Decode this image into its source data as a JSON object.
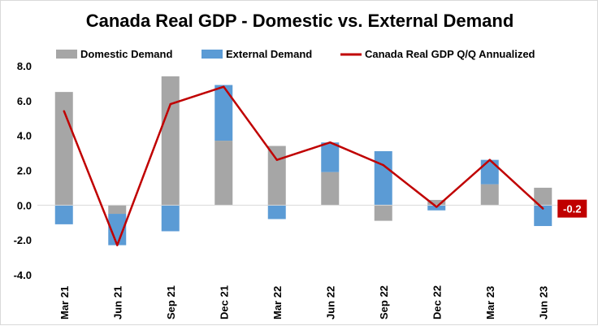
{
  "chart_data": {
    "type": "bar",
    "title": "Canada Real GDP - Domestic vs. External Demand",
    "categories": [
      "Mar 21",
      "Jun 21",
      "Sep 21",
      "Dec 21",
      "Mar 22",
      "Jun 22",
      "Sep 22",
      "Dec 22",
      "Mar 23",
      "Jun 23"
    ],
    "ylim": [
      -4.0,
      8.0
    ],
    "yticks": [
      "8.0",
      "6.0",
      "4.0",
      "2.0",
      "0.0",
      "-2.0",
      "-4.0"
    ],
    "grid": false,
    "legend_position": "top",
    "series": [
      {
        "name": "Domestic Demand",
        "kind": "bar",
        "color": "#a6a6a6",
        "values": [
          6.5,
          -0.5,
          7.4,
          3.7,
          3.4,
          1.9,
          -0.9,
          0.3,
          1.2,
          1.0
        ]
      },
      {
        "name": "External Demand",
        "kind": "bar",
        "color": "#5b9bd5",
        "values": [
          -1.1,
          -1.8,
          -1.5,
          3.2,
          -0.8,
          1.7,
          3.1,
          -0.3,
          1.4,
          -1.2
        ]
      },
      {
        "name": "Canada Real GDP Q/Q Annualized",
        "kind": "line",
        "color": "#c00000",
        "values": [
          5.4,
          -2.3,
          5.8,
          6.8,
          2.6,
          3.6,
          2.3,
          -0.1,
          2.6,
          -0.2
        ]
      }
    ],
    "annotations": [
      {
        "series": "Canada Real GDP Q/Q Annualized",
        "category": "Jun 23",
        "text": "-0.2",
        "bg_color": "#c00000"
      }
    ]
  }
}
